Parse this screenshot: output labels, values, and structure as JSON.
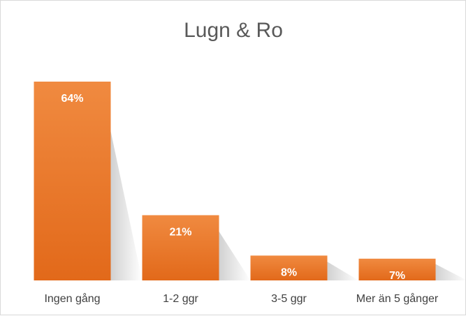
{
  "chart_data": {
    "type": "bar",
    "title": "Lugn & Ro",
    "categories": [
      "Ingen gång",
      "1-2 ggr",
      "3-5 ggr",
      "Mer än 5 gånger"
    ],
    "values": [
      64,
      21,
      8,
      7
    ],
    "value_labels": [
      "64%",
      "21%",
      "8%",
      "7%"
    ],
    "unit": "%",
    "ylim": [
      0,
      70
    ],
    "grid": false,
    "legend": "none",
    "bar_color": "#ED7D31",
    "bar_color_dark": "#E06A1A"
  }
}
